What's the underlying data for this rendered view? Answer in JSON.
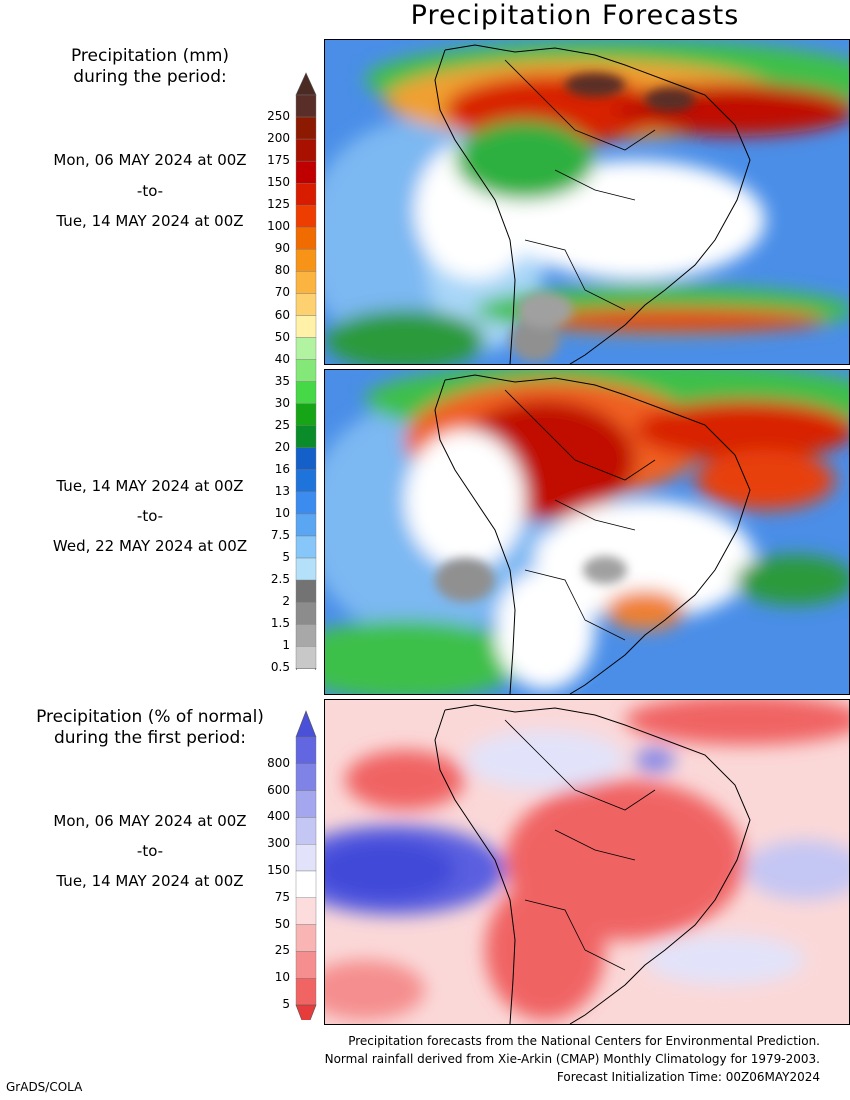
{
  "title": "Precipitation Forecasts",
  "legend_mm": {
    "heading": [
      "Precipitation (mm)",
      "during the period:"
    ],
    "ticks": [
      "250",
      "200",
      "175",
      "150",
      "125",
      "100",
      "90",
      "80",
      "70",
      "60",
      "50",
      "40",
      "35",
      "30",
      "25",
      "20",
      "16",
      "13",
      "10",
      "7.5",
      "5",
      "2.5",
      "2",
      "1.5",
      "1",
      "0.5"
    ],
    "colors": [
      "#5a2e28",
      "#8b1a00",
      "#a81000",
      "#c00000",
      "#d81c00",
      "#ee3d00",
      "#f06b00",
      "#f79418",
      "#fbb440",
      "#fdd070",
      "#fff2a8",
      "#b2f3a2",
      "#84e878",
      "#46d846",
      "#16a516",
      "#0a8c2a",
      "#1560c8",
      "#1f74dc",
      "#3c8cf0",
      "#5aa6f2",
      "#86c6f8",
      "#b4e0fa",
      "#737373",
      "#8c8c8c",
      "#a8a8a8",
      "#c8c8c8"
    ],
    "top_arrow_color": "#4b2a24",
    "bottom_arrow_color": "#ffffff"
  },
  "period1": {
    "start": "Mon, 06 MAY 2024 at 00Z",
    "to": "-to-",
    "end": "Tue, 14 MAY 2024 at 00Z"
  },
  "period2": {
    "start": "Tue, 14 MAY 2024 at 00Z",
    "to": "-to-",
    "end": "Wed, 22 MAY 2024 at 00Z"
  },
  "legend_pct": {
    "heading": [
      "Precipitation (% of normal)",
      "during the first period:"
    ],
    "ticks": [
      "800",
      "600",
      "400",
      "300",
      "150",
      "75",
      "50",
      "25",
      "10",
      "5"
    ],
    "colors": [
      "#6266e0",
      "#8083e6",
      "#a4a6ee",
      "#c4c6f4",
      "#e2e3fa",
      "#ffffff",
      "#fcdcdc",
      "#f9b4b4",
      "#f58e8e",
      "#f06464"
    ],
    "top_arrow_color": "#4a50d8",
    "bottom_arrow_color": "#e63c3c"
  },
  "period3": {
    "start": "Mon, 06 MAY 2024 at 00Z",
    "to": "-to-",
    "end": "Tue, 14 MAY 2024 at 00Z"
  },
  "footnote": [
    "Precipitation forecasts from the National Centers for Environmental Prediction.",
    "Normal rainfall derived from Xie-Arkin (CMAP) Monthly Climatology for 1979-2003.",
    "Forecast Initialization Time: 00Z06MAY2024"
  ],
  "credit": "GrADS/COLA"
}
